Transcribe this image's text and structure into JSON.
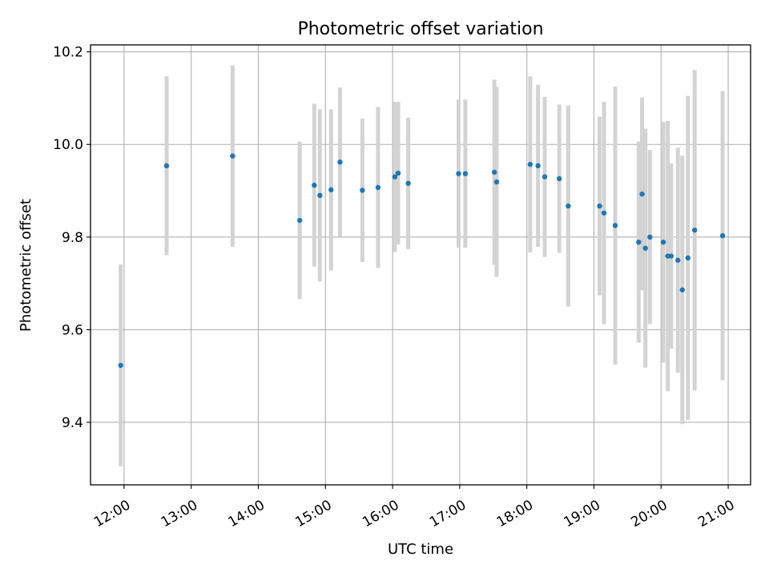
{
  "chart_data": {
    "type": "scatter",
    "title": "Photometric offset variation",
    "xlabel": "UTC time",
    "ylabel": "Photometric offset",
    "xlim": [
      "11:30",
      "21:20"
    ],
    "ylim": [
      9.265,
      10.215
    ],
    "grid": true,
    "x_ticks": [
      "12:00",
      "13:00",
      "14:00",
      "15:00",
      "16:00",
      "17:00",
      "18:00",
      "19:00",
      "20:00",
      "21:00"
    ],
    "y_ticks": [
      "9.4",
      "9.6",
      "9.8",
      "10.0",
      "10.2"
    ],
    "colors": {
      "point": "#1f77b4",
      "errorbar": "#d3d3d3",
      "grid": "#b0b0b0"
    },
    "points": [
      {
        "x": "11:57",
        "y": 9.523,
        "err": 0.218
      },
      {
        "x": "12:38",
        "y": 9.954,
        "err": 0.193
      },
      {
        "x": "13:37",
        "y": 9.975,
        "err": 0.196
      },
      {
        "x": "14:37",
        "y": 9.836,
        "err": 0.17
      },
      {
        "x": "14:50",
        "y": 9.912,
        "err": 0.176
      },
      {
        "x": "14:55",
        "y": 9.89,
        "err": 0.186
      },
      {
        "x": "15:05",
        "y": 9.902,
        "err": 0.174
      },
      {
        "x": "15:13",
        "y": 9.962,
        "err": 0.161
      },
      {
        "x": "15:33",
        "y": 9.901,
        "err": 0.155
      },
      {
        "x": "15:47",
        "y": 9.907,
        "err": 0.174
      },
      {
        "x": "16:02",
        "y": 9.93,
        "err": 0.162
      },
      {
        "x": "16:05",
        "y": 9.938,
        "err": 0.154
      },
      {
        "x": "16:14",
        "y": 9.916,
        "err": 0.142
      },
      {
        "x": "16:59",
        "y": 9.937,
        "err": 0.16
      },
      {
        "x": "17:05",
        "y": 9.937,
        "err": 0.16
      },
      {
        "x": "17:31",
        "y": 9.94,
        "err": 0.2
      },
      {
        "x": "17:33",
        "y": 9.919,
        "err": 0.205
      },
      {
        "x": "18:03",
        "y": 9.957,
        "err": 0.19
      },
      {
        "x": "18:10",
        "y": 9.954,
        "err": 0.175
      },
      {
        "x": "18:16",
        "y": 9.93,
        "err": 0.173
      },
      {
        "x": "18:29",
        "y": 9.926,
        "err": 0.16
      },
      {
        "x": "18:37",
        "y": 9.867,
        "err": 0.217
      },
      {
        "x": "19:05",
        "y": 9.867,
        "err": 0.193
      },
      {
        "x": "19:09",
        "y": 9.852,
        "err": 0.24
      },
      {
        "x": "19:19",
        "y": 9.825,
        "err": 0.3
      },
      {
        "x": "19:40",
        "y": 9.789,
        "err": 0.217
      },
      {
        "x": "19:43",
        "y": 9.893,
        "err": 0.208
      },
      {
        "x": "19:46",
        "y": 9.776,
        "err": 0.258
      },
      {
        "x": "19:50",
        "y": 9.8,
        "err": 0.188
      },
      {
        "x": "20:02",
        "y": 9.789,
        "err": 0.26
      },
      {
        "x": "20:06",
        "y": 9.759,
        "err": 0.292
      },
      {
        "x": "20:09",
        "y": 9.759,
        "err": 0.2
      },
      {
        "x": "20:15",
        "y": 9.75,
        "err": 0.243
      },
      {
        "x": "20:19",
        "y": 9.686,
        "err": 0.29
      },
      {
        "x": "20:24",
        "y": 9.755,
        "err": 0.35
      },
      {
        "x": "20:30",
        "y": 9.815,
        "err": 0.346
      },
      {
        "x": "20:55",
        "y": 9.803,
        "err": 0.312
      }
    ]
  }
}
